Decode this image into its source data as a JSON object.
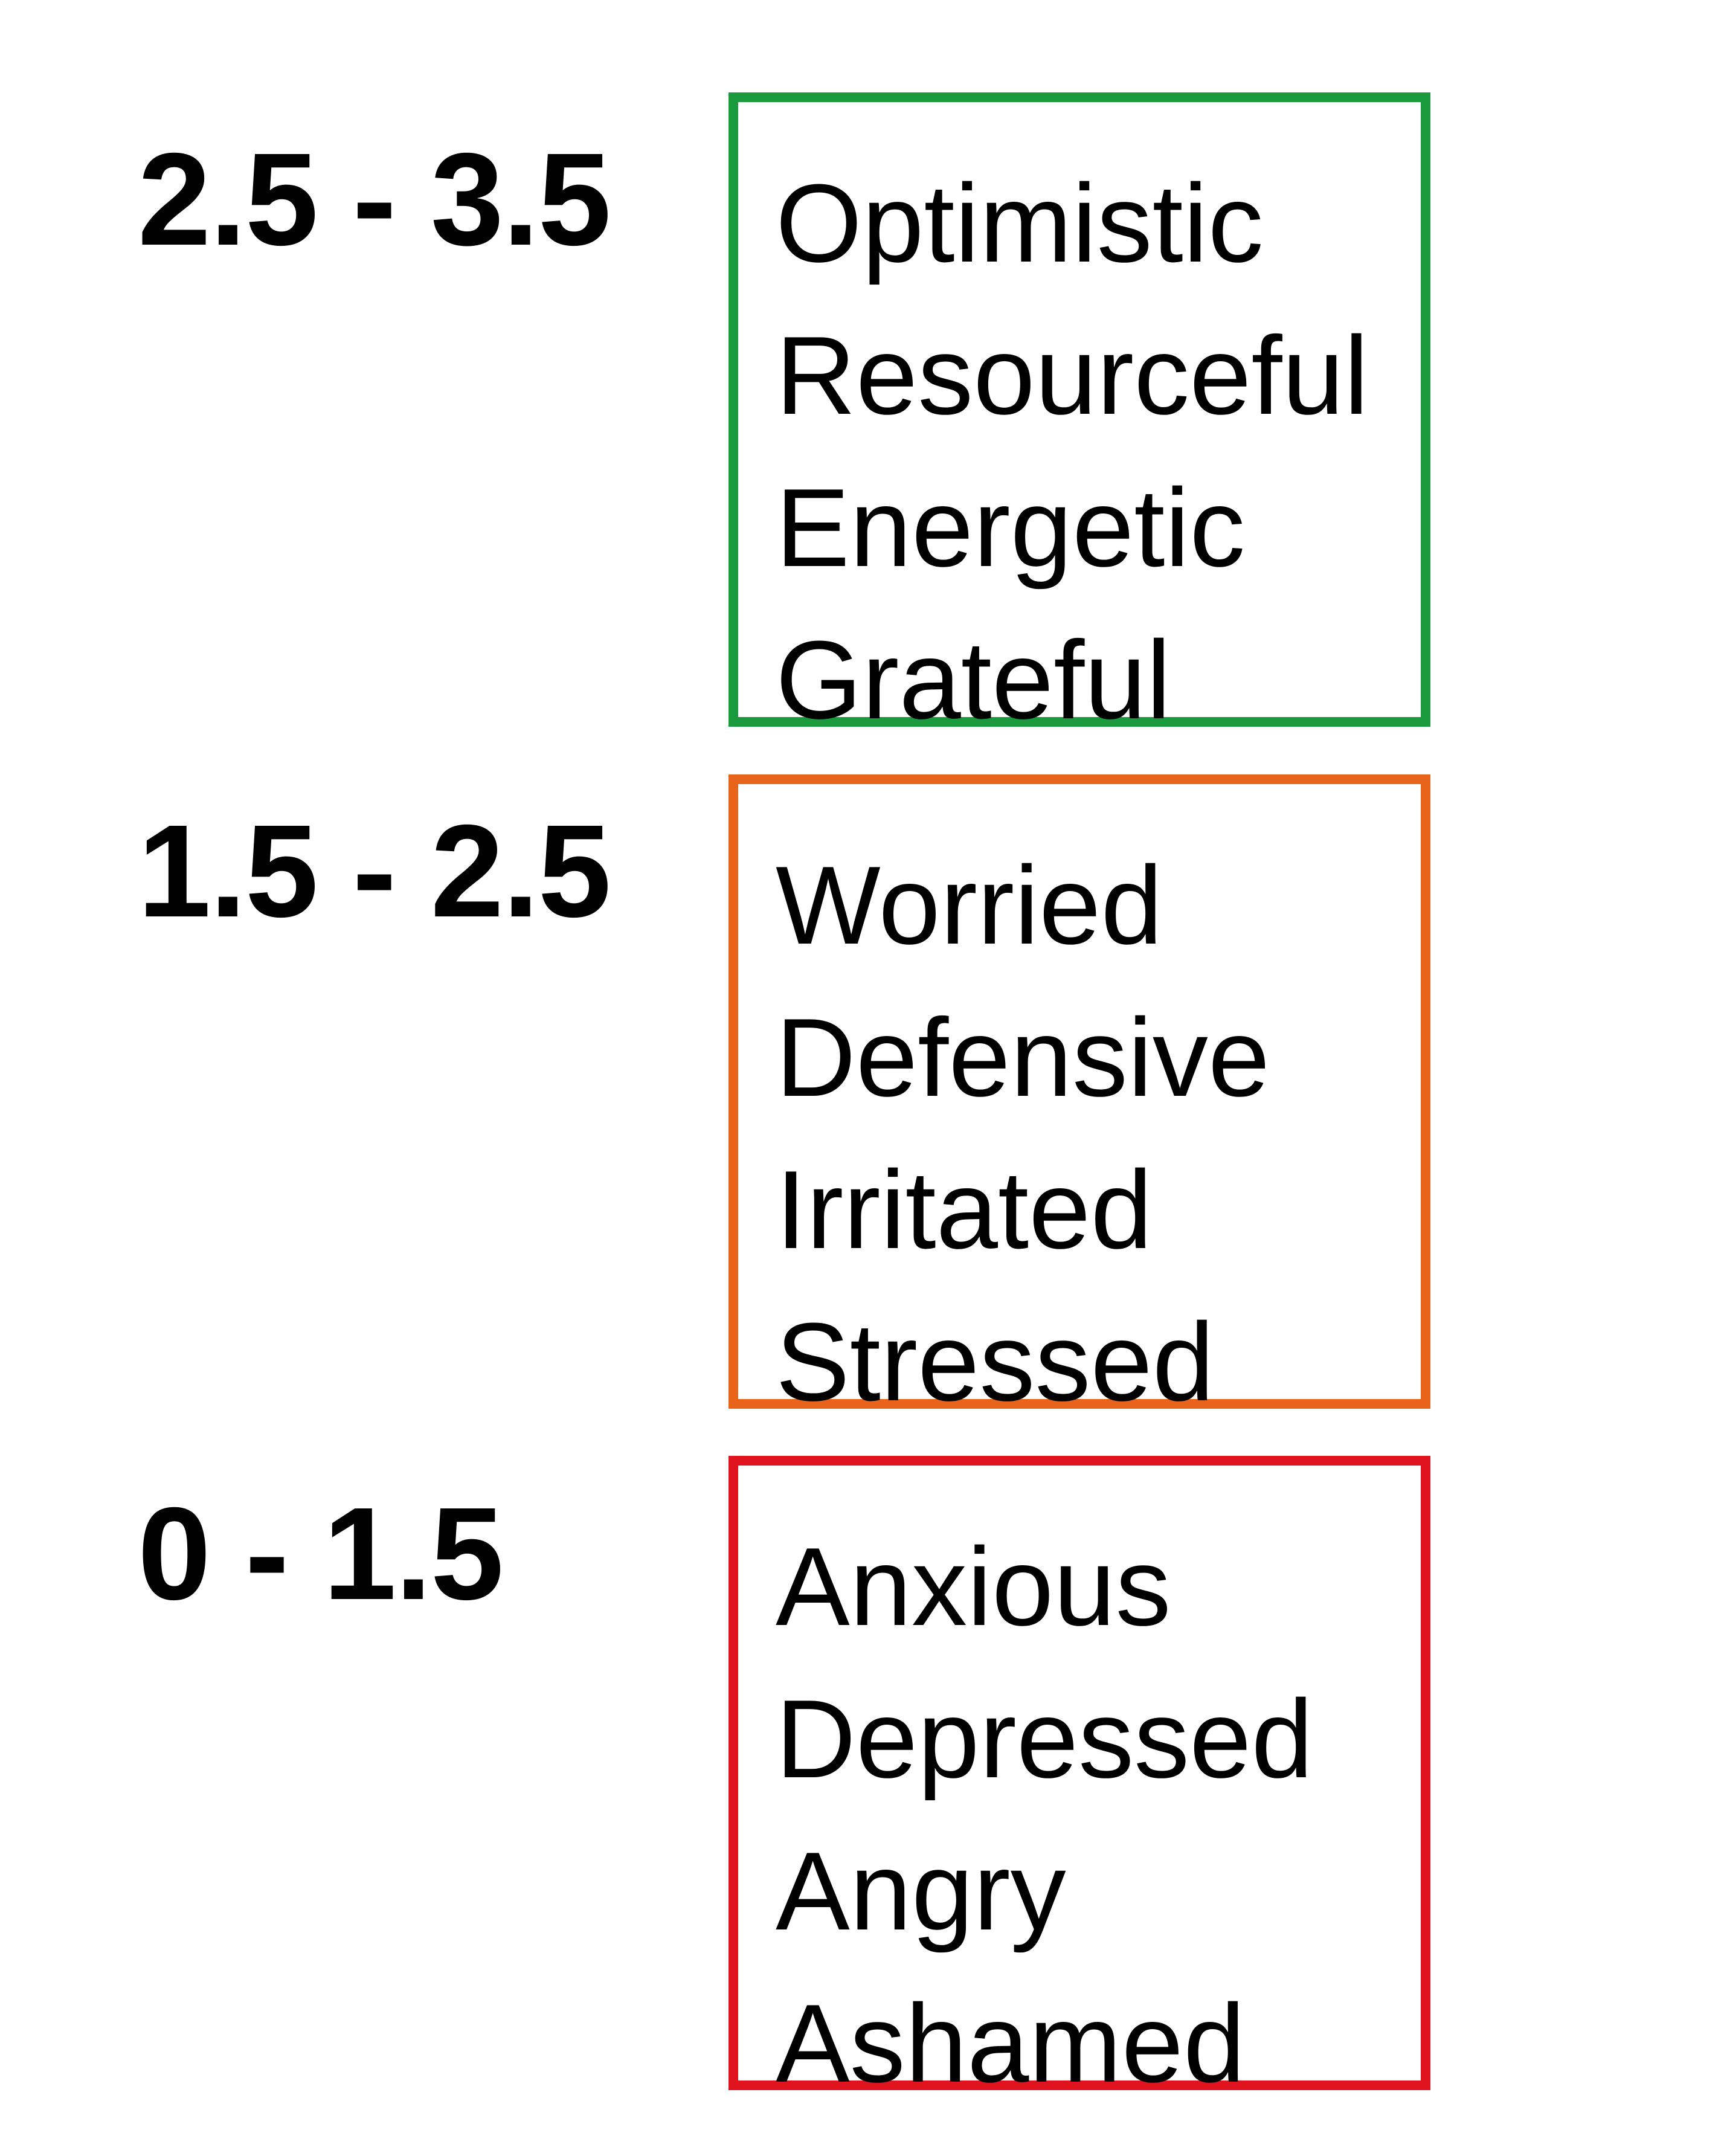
{
  "tiers": [
    {
      "range": "2.5 - 3.5",
      "color": "#1a9a3c",
      "words": [
        "Optimistic",
        "Resourceful",
        "Energetic",
        "Grateful"
      ]
    },
    {
      "range": "1.5 - 2.5",
      "color": "#e8641a",
      "words": [
        "Worried",
        "Defensive",
        "Irritated",
        "Stressed"
      ]
    },
    {
      "range": "0 - 1.5",
      "color": "#e0141e",
      "words": [
        "Anxious",
        "Depressed",
        "Angry",
        "Ashamed"
      ]
    }
  ]
}
